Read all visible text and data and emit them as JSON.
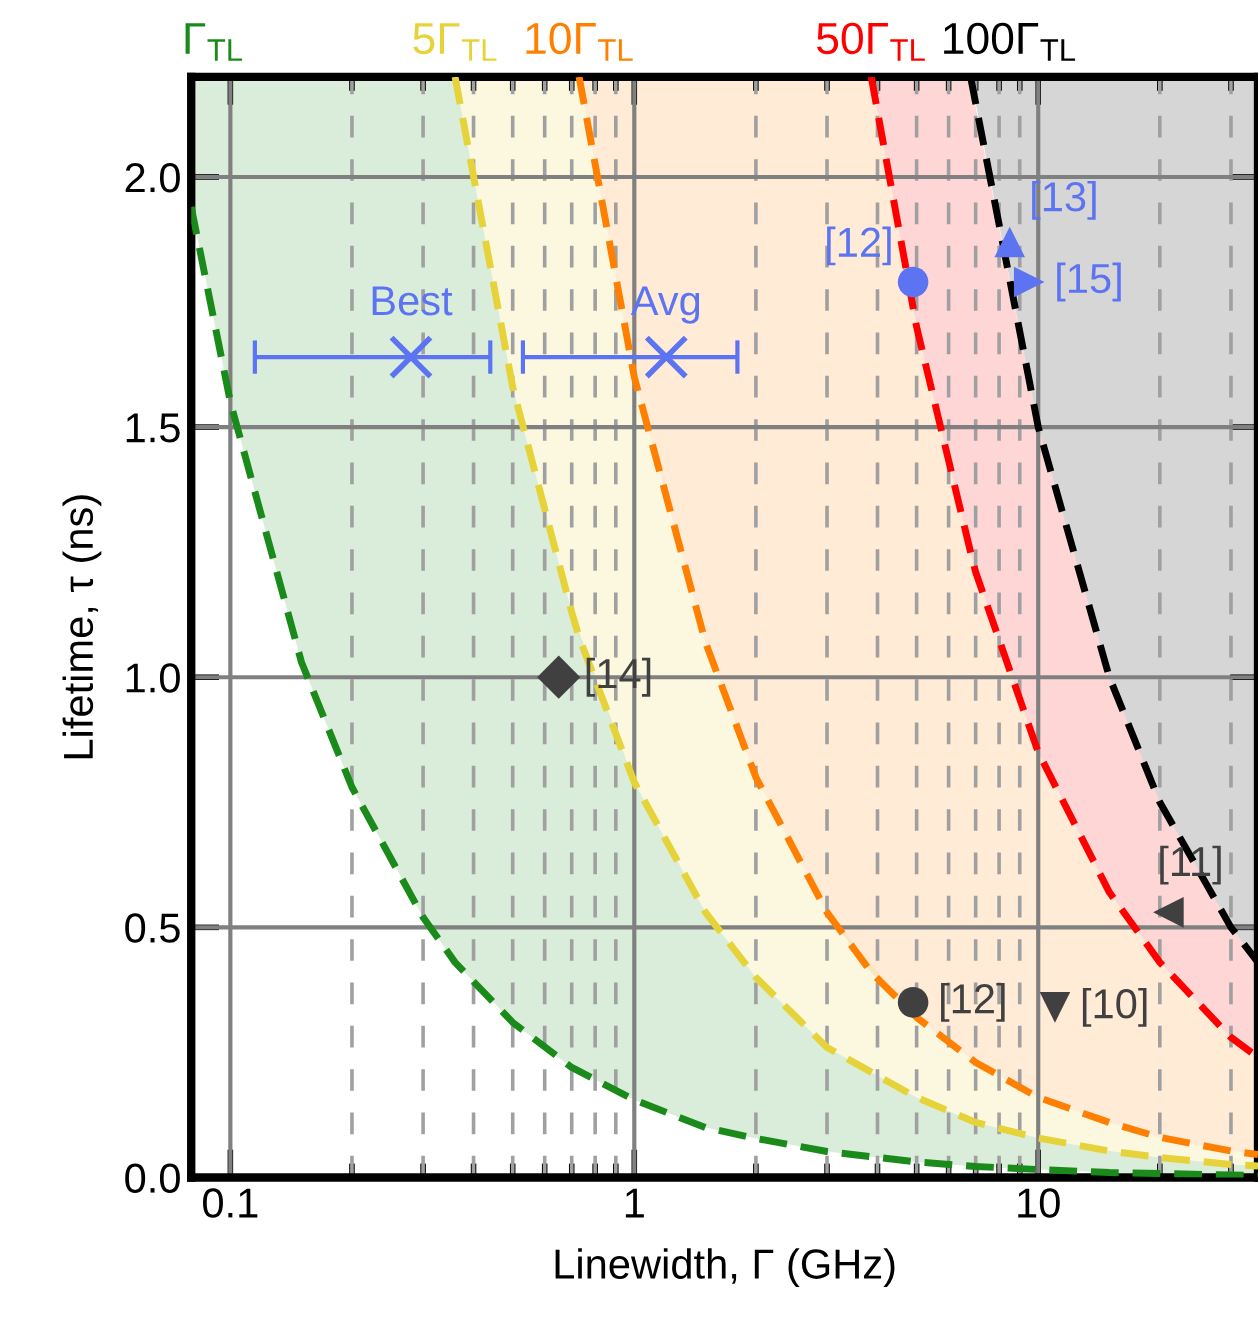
{
  "chart_data": {
    "type": "line",
    "xlabel": "Linewidth, Γ (GHz)",
    "ylabel": "Lifetime, τ (ns)",
    "log": "x",
    "xlim": [
      0.08,
      35
    ],
    "ylim": [
      0,
      2.2
    ],
    "xticks": [
      {
        "value": 0.1,
        "label": "0.1"
      },
      {
        "value": 0.2,
        "label": null
      },
      {
        "value": 0.3,
        "label": null
      },
      {
        "value": 0.4,
        "label": null
      },
      {
        "value": 0.5,
        "label": null
      },
      {
        "value": 0.6,
        "label": null
      },
      {
        "value": 0.7,
        "label": null
      },
      {
        "value": 0.8,
        "label": null
      },
      {
        "value": 0.9,
        "label": null
      },
      1,
      {
        "value": 2,
        "label": null
      },
      {
        "value": 3,
        "label": null
      },
      {
        "value": 4,
        "label": null
      },
      {
        "value": 5,
        "label": null
      },
      {
        "value": 6,
        "label": null
      },
      {
        "value": 7,
        "label": null
      },
      {
        "value": 8,
        "label": null
      },
      {
        "value": 9,
        "label": null
      },
      10,
      {
        "value": 20,
        "label": null
      },
      {
        "value": 30,
        "label": null
      }
    ],
    "yticks": [
      {
        "value": 0,
        "label": "0.0"
      },
      {
        "value": 0.5,
        "label": "0.5"
      },
      {
        "value": 1,
        "label": "1.0"
      },
      {
        "value": 1.5,
        "label": "1.5"
      },
      {
        "value": 2,
        "label": "2.0"
      }
    ],
    "grid": true,
    "legend": false,
    "series": [
      {
        "name": "Γ$_{TL}$",
        "color": "#1a8a1a",
        "line_style": "dashed",
        "marker": "none",
        "x": [
          0.08,
          0.1,
          0.15,
          0.2,
          0.3,
          0.36,
          0.5,
          0.7,
          1,
          1.5,
          2,
          3,
          5,
          7,
          10,
          15,
          20,
          30,
          35
        ],
        "values": [
          1.94,
          1.55,
          1.03,
          0.78,
          0.52,
          0.43,
          0.31,
          0.22,
          0.155,
          0.1,
          0.078,
          0.052,
          0.031,
          0.022,
          0.016,
          0.01,
          0.008,
          0.005,
          0.004
        ],
        "lower": [
          1.94,
          1.55,
          1.03,
          0.78,
          0.52,
          0.43,
          0.31,
          0.22,
          0.155,
          0.1,
          0.078,
          0.052,
          0.031,
          0.022,
          0.016,
          0.01,
          0.008,
          0.005,
          0.004
        ],
        "upper": [
          2.2,
          2.2,
          2.2,
          2.2,
          2.2,
          2.2,
          1.58,
          1.13,
          0.79,
          0.53,
          0.4,
          0.26,
          0.16,
          0.11,
          0.079,
          0.053,
          0.04,
          0.026,
          0.023
        ]
      },
      {
        "name": "5Γ$_{TL}$",
        "color": "#e6d33a",
        "line_style": "dashed",
        "marker": "none",
        "x": [
          0.36,
          0.5,
          0.7,
          0.73,
          1,
          1.5,
          2,
          3,
          5,
          7,
          10,
          15,
          20,
          30,
          35
        ],
        "values": [
          2.2,
          1.58,
          1.13,
          1.08,
          0.79,
          0.53,
          0.4,
          0.26,
          0.16,
          0.11,
          0.079,
          0.053,
          0.04,
          0.026,
          0.023
        ],
        "lower": [
          2.2,
          1.58,
          1.13,
          1.08,
          0.79,
          0.53,
          0.4,
          0.26,
          0.16,
          0.11,
          0.079,
          0.053,
          0.04,
          0.026,
          0.023
        ],
        "upper": [
          2.2,
          2.2,
          2.2,
          2.2,
          1.6,
          1.07,
          0.8,
          0.53,
          0.32,
          0.23,
          0.16,
          0.11,
          0.08,
          0.053,
          0.046
        ]
      },
      {
        "name": "10Γ$_{TL}$",
        "color": "#ff8000",
        "line_style": "dashed",
        "marker": "none",
        "x": [
          0.73,
          1,
          1.5,
          2,
          3,
          3.86,
          5,
          7,
          10,
          15,
          20,
          30,
          35
        ],
        "values": [
          2.2,
          1.6,
          1.07,
          0.8,
          0.53,
          0.41,
          0.32,
          0.23,
          0.16,
          0.11,
          0.08,
          0.053,
          0.046
        ],
        "lower": [
          2.2,
          1.6,
          1.07,
          0.8,
          0.53,
          0.41,
          0.32,
          0.23,
          0.16,
          0.11,
          0.08,
          0.053,
          0.046
        ],
        "upper": [
          2.2,
          2.2,
          2.2,
          2.2,
          2.2,
          2.2,
          1.7,
          1.21,
          0.85,
          0.57,
          0.43,
          0.28,
          0.24
        ]
      },
      {
        "name": "50Γ$_{TL}$",
        "color": "#ff0000",
        "line_style": "dashed",
        "marker": "none",
        "x": [
          3.86,
          5,
          6.8,
          7,
          10,
          15,
          20,
          30,
          35
        ],
        "values": [
          2.2,
          1.7,
          1.25,
          1.21,
          0.85,
          0.57,
          0.43,
          0.28,
          0.24
        ],
        "lower": [
          2.2,
          1.7,
          1.25,
          1.21,
          0.85,
          0.57,
          0.43,
          0.28,
          0.24
        ],
        "upper": [
          2.2,
          2.2,
          2.2,
          2.14,
          1.5,
          1.0,
          0.75,
          0.5,
          0.43
        ]
      },
      {
        "name": "100Γ$_{TL}$",
        "color": "#000000",
        "line_style": "dashed",
        "marker": "none",
        "x": [
          6.8,
          10,
          15,
          20,
          30,
          35
        ],
        "values": [
          2.2,
          1.5,
          1.0,
          0.75,
          0.5,
          0.43
        ],
        "lower": [
          2.2,
          1.5,
          1.0,
          0.75,
          0.5,
          0.43
        ],
        "upper": [
          2.2,
          2.2,
          2.2,
          2.2,
          2.2,
          2.2
        ]
      },
      {
        "type": "scatter",
        "name": "Best",
        "color": "#5c74f2",
        "marker": "cross",
        "x": [
          0.28
        ],
        "values": [
          1.64
        ],
        "xerrors": [
          [
            0.115,
            0.44
          ]
        ]
      },
      {
        "type": "scatter",
        "name": "Avg",
        "color": "#5c74f2",
        "marker": "cross",
        "x": [
          1.2
        ],
        "values": [
          1.64
        ],
        "xerrors": [
          [
            0.53,
            1.8
          ]
        ]
      },
      {
        "type": "scatter",
        "name": "[12]",
        "color": "#5c74f2",
        "marker": "circle",
        "x": [
          4.9
        ],
        "values": [
          1.79
        ]
      },
      {
        "type": "scatter",
        "name": "[13]",
        "color": "#5c74f2",
        "marker": "triangle",
        "x": [
          8.5
        ],
        "values": [
          1.87
        ]
      },
      {
        "type": "scatter",
        "name": "[15]",
        "color": "#5c74f2",
        "marker": "triangle-right",
        "x": [
          9.5
        ],
        "values": [
          1.79
        ]
      },
      {
        "type": "scatter",
        "name": "[14]",
        "color": "#404040",
        "marker": "diamond",
        "x": [
          0.65
        ],
        "values": [
          1.0
        ]
      },
      {
        "type": "scatter",
        "name": "[12]",
        "color": "#404040",
        "marker": "circle",
        "x": [
          4.9
        ],
        "values": [
          0.35
        ]
      },
      {
        "type": "scatter",
        "name": "[10]",
        "color": "#404040",
        "marker": "triangle-down",
        "x": [
          11
        ],
        "values": [
          0.34
        ]
      },
      {
        "type": "scatter",
        "name": "[11]",
        "color": "#404040",
        "marker": "triangle-left",
        "x": [
          21
        ],
        "values": [
          0.53
        ]
      }
    ]
  }
}
